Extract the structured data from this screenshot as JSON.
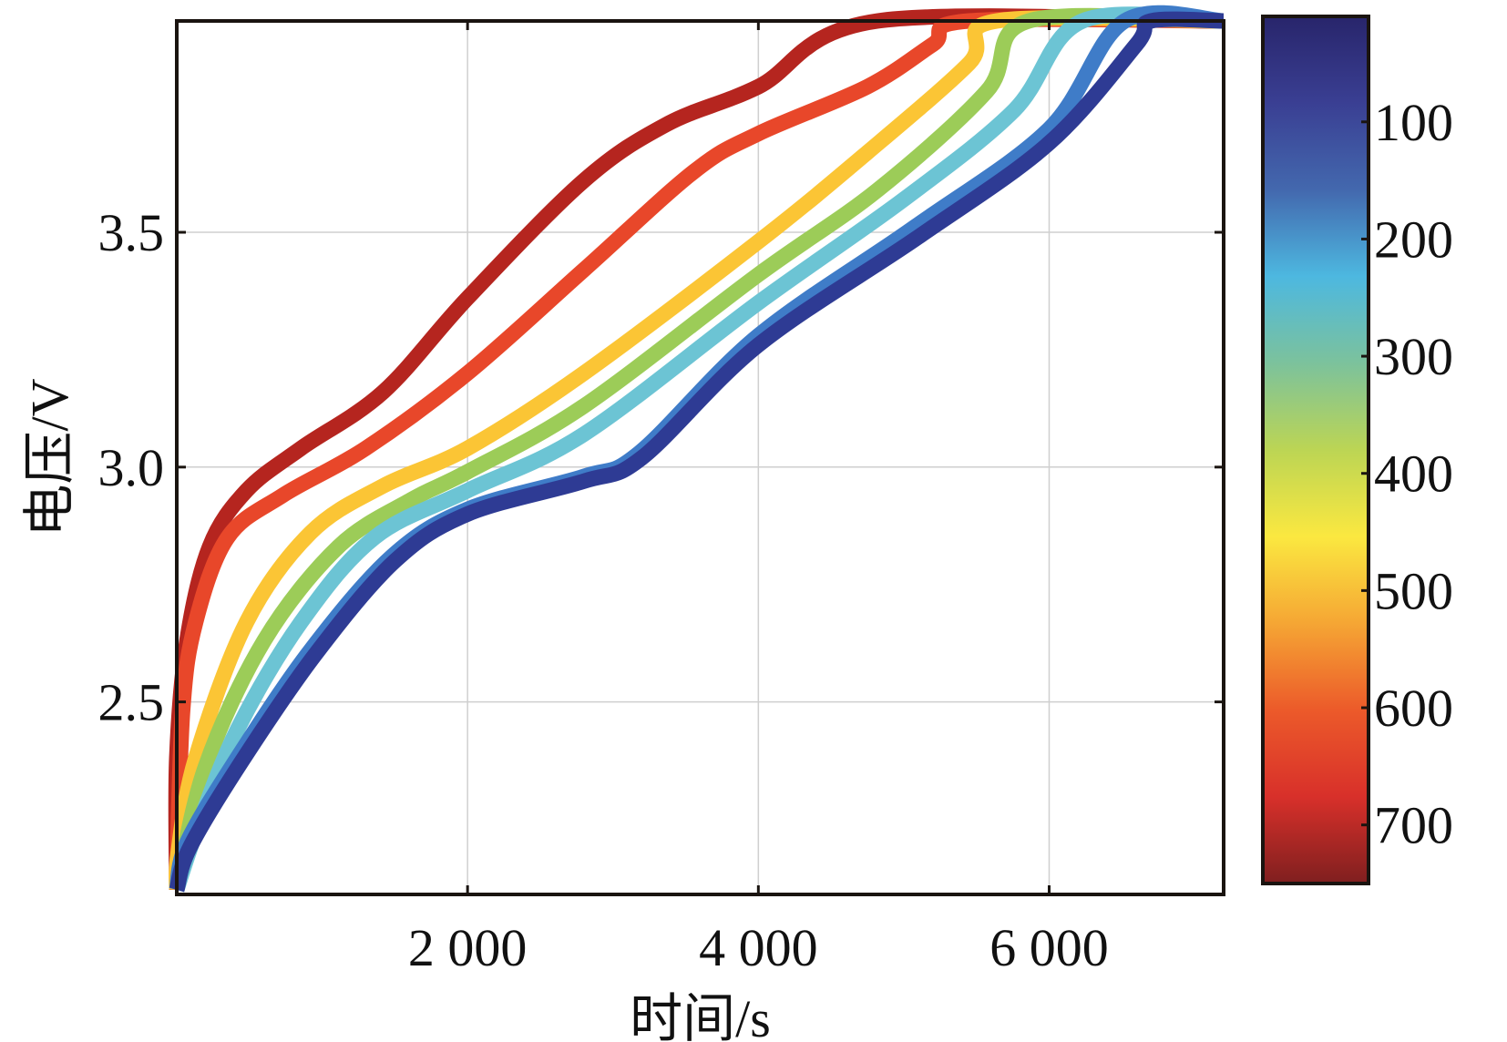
{
  "chart_data": {
    "type": "line",
    "title": "",
    "xlabel": "时间/s",
    "ylabel": "电压/V",
    "xlim": [
      0,
      7200
    ],
    "ylim": [
      2.09,
      3.95
    ],
    "grid": true,
    "x_ticks": [
      {
        "value": 2000,
        "label": "2 000"
      },
      {
        "value": 4000,
        "label": "4 000"
      },
      {
        "value": 6000,
        "label": "6 000"
      }
    ],
    "y_ticks": [
      {
        "value": 2.5,
        "label": "2.5"
      },
      {
        "value": 3.0,
        "label": "3.0"
      },
      {
        "value": 3.5,
        "label": "3.5"
      }
    ],
    "colorbar": {
      "range": [
        10,
        750
      ],
      "ticks": [
        {
          "value": 100,
          "label": "100"
        },
        {
          "value": 200,
          "label": "200"
        },
        {
          "value": 300,
          "label": "300"
        },
        {
          "value": 400,
          "label": "400"
        },
        {
          "value": 500,
          "label": "500"
        },
        {
          "value": 600,
          "label": "600"
        },
        {
          "value": 700,
          "label": "700"
        }
      ],
      "colormap": [
        "#7f1f1f",
        "#d8302a",
        "#ec5a2a",
        "#f5a634",
        "#fbe840",
        "#bcd554",
        "#7cc29c",
        "#4db8e0",
        "#4368ae",
        "#3a3f93",
        "#28256b"
      ],
      "placement": "right"
    },
    "series": [
      {
        "name": "700",
        "color": "#b5251f",
        "points": [
          [
            0,
            2.1
          ],
          [
            0,
            2.38
          ],
          [
            70,
            2.63
          ],
          [
            225,
            2.83
          ],
          [
            480,
            2.95
          ],
          [
            855,
            3.04
          ],
          [
            1420,
            3.16
          ],
          [
            2000,
            3.36
          ],
          [
            2800,
            3.61
          ],
          [
            3370,
            3.73
          ],
          [
            4000,
            3.81
          ],
          [
            4820,
            3.95
          ],
          [
            7200,
            3.95
          ]
        ]
      },
      {
        "name": "600",
        "color": "#e8472a",
        "points": [
          [
            0,
            2.1
          ],
          [
            40,
            2.48
          ],
          [
            130,
            2.67
          ],
          [
            350,
            2.85
          ],
          [
            730,
            2.94
          ],
          [
            1300,
            3.04
          ],
          [
            2000,
            3.2
          ],
          [
            2800,
            3.42
          ],
          [
            3560,
            3.63
          ],
          [
            4000,
            3.71
          ],
          [
            4750,
            3.81
          ],
          [
            5200,
            3.9
          ],
          [
            5450,
            3.95
          ],
          [
            7200,
            3.95
          ]
        ]
      },
      {
        "name": "500",
        "color": "#fbc535",
        "points": [
          [
            0,
            2.1
          ],
          [
            10,
            2.18
          ],
          [
            130,
            2.38
          ],
          [
            480,
            2.67
          ],
          [
            920,
            2.86
          ],
          [
            1420,
            2.96
          ],
          [
            2000,
            3.04
          ],
          [
            2800,
            3.2
          ],
          [
            4000,
            3.48
          ],
          [
            4750,
            3.67
          ],
          [
            5450,
            3.86
          ],
          [
            5640,
            3.95
          ],
          [
            7200,
            3.95
          ]
        ]
      },
      {
        "name": "400",
        "color": "#9ccc58",
        "points": [
          [
            0,
            2.1
          ],
          [
            195,
            2.36
          ],
          [
            600,
            2.63
          ],
          [
            1110,
            2.83
          ],
          [
            1610,
            2.93
          ],
          [
            2000,
            2.99
          ],
          [
            2800,
            3.13
          ],
          [
            4000,
            3.41
          ],
          [
            4820,
            3.59
          ],
          [
            5570,
            3.8
          ],
          [
            5860,
            3.95
          ],
          [
            7200,
            3.95
          ]
        ]
      },
      {
        "name": "300",
        "color": "#6cc4d4",
        "points": [
          [
            0,
            2.1
          ],
          [
            130,
            2.22
          ],
          [
            415,
            2.44
          ],
          [
            855,
            2.67
          ],
          [
            1360,
            2.85
          ],
          [
            2000,
            2.95
          ],
          [
            2800,
            3.07
          ],
          [
            4000,
            3.35
          ],
          [
            5000,
            3.57
          ],
          [
            5760,
            3.76
          ],
          [
            6230,
            3.95
          ],
          [
            7200,
            3.95
          ]
        ]
      },
      {
        "name": "200",
        "color": "#3f7cc8",
        "points": [
          [
            0,
            2.1
          ],
          [
            70,
            2.2
          ],
          [
            415,
            2.38
          ],
          [
            920,
            2.61
          ],
          [
            1480,
            2.81
          ],
          [
            2000,
            2.91
          ],
          [
            2800,
            2.98
          ],
          [
            3180,
            3.03
          ],
          [
            4000,
            3.28
          ],
          [
            5070,
            3.51
          ],
          [
            6000,
            3.72
          ],
          [
            6520,
            3.95
          ],
          [
            7200,
            3.95
          ]
        ]
      },
      {
        "name": "100",
        "color": "#2e3b94",
        "points": [
          [
            0,
            2.1
          ],
          [
            90,
            2.19
          ],
          [
            440,
            2.37
          ],
          [
            950,
            2.6
          ],
          [
            1500,
            2.8
          ],
          [
            2000,
            2.9
          ],
          [
            2800,
            2.97
          ],
          [
            3200,
            3.02
          ],
          [
            4000,
            3.26
          ],
          [
            5100,
            3.49
          ],
          [
            6000,
            3.69
          ],
          [
            6600,
            3.9
          ],
          [
            6700,
            3.95
          ],
          [
            7200,
            3.95
          ]
        ]
      }
    ]
  }
}
